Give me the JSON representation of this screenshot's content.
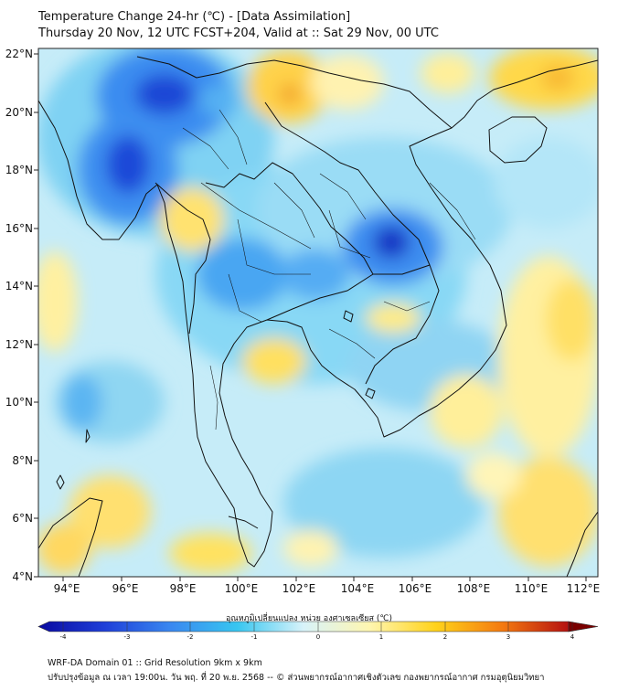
{
  "header": {
    "title_line1": "Temperature Change 24-hr (℃) - [Data Assimilation]",
    "title_line2": "Thursday 20 Nov, 12 UTC FCST+204, Valid at :: Sat 29 Nov, 00 UTC"
  },
  "map": {
    "lat_labels": [
      "22°N",
      "20°N",
      "18°N",
      "16°N",
      "14°N",
      "12°N",
      "10°N",
      "8°N",
      "6°N",
      "4°N"
    ],
    "lon_labels": [
      "94°E",
      "96°E",
      "98°E",
      "100°E",
      "102°E",
      "104°E",
      "106°E",
      "108°E",
      "110°E",
      "112°E"
    ],
    "extent": {
      "lon_min": 93,
      "lon_max": 112.3,
      "lat_min": 4,
      "lat_max": 22.2
    }
  },
  "colorbar": {
    "label": "อุณหภูมิเปลี่ยนแปลง หน่วย องศาเซลเซียส (℃)",
    "tick_labels": [
      "-4",
      "-3",
      "-2",
      "-1",
      "0",
      "1",
      "2",
      "3",
      "4"
    ],
    "colors": [
      "#0a0aa0",
      "#1f3fd8",
      "#3a88f0",
      "#38c6f0",
      "#d8f3fa",
      "#fff6b0",
      "#ffd21a",
      "#f47a10",
      "#b41010"
    ]
  },
  "footer": {
    "line1": "WRF-DA Domain 01 :: Grid Resolution 9km x 9km",
    "line2": "ปรับปรุงข้อมูล ณ เวลา 19:00น. วัน พฤ. ที่ 20 พ.ย. 2568 -- © ส่วนพยากรณ์อากาศเชิงตัวเลข กองพยากรณ์อากาศ กรมอุตุนิยมวิทยา"
  }
}
